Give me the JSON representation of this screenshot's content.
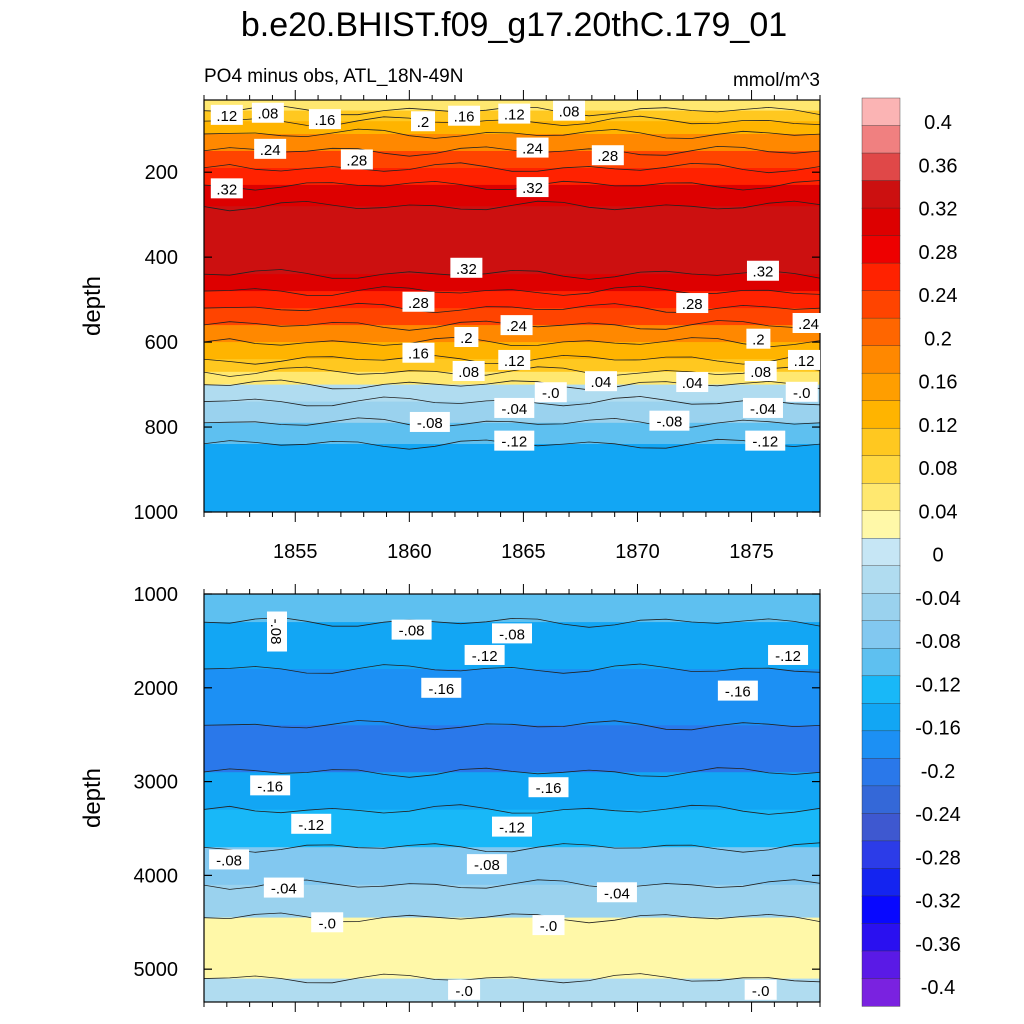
{
  "chart_data": {
    "type": "heatmap",
    "title": "b.e20.BHIST.f09_g17.20thC.179_01",
    "subtitle_left": "PO4 minus obs, ATL_18N-49N",
    "units": "mmol/m^3",
    "colorbar": {
      "label_values": [
        "0.4",
        "0.36",
        "0.32",
        "0.28",
        "0.24",
        "0.2",
        "0.16",
        "0.12",
        "0.08",
        "0.04",
        "0",
        "-0.04",
        "-0.08",
        "-0.12",
        "-0.16",
        "-0.2",
        "-0.24",
        "-0.28",
        "-0.32",
        "-0.36",
        "-0.4"
      ],
      "colors": [
        "#fbb4b4",
        "#f08080",
        "#e04848",
        "#cc1010",
        "#dd0000",
        "#ee0000",
        "#ff2200",
        "#ff4400",
        "#ff6600",
        "#ff8800",
        "#ff9e00",
        "#ffb400",
        "#ffc820",
        "#ffd840",
        "#ffe870",
        "#fff8a8",
        "#c6e6f5",
        "#b0dcf0",
        "#9ad2ee",
        "#82c8f0",
        "#5ec0f0",
        "#18b8f8",
        "#12a6f4",
        "#1c90f4",
        "#2a78ea",
        "#3468d8",
        "#3e58d0",
        "#2c3ce8",
        "#1424f0",
        "#0808ff",
        "#2a10f0",
        "#5a1ae6",
        "#7a22e0"
      ]
    },
    "panels": [
      {
        "name": "upper",
        "ylabel": "depth",
        "xlim": [
          1851,
          1878
        ],
        "ylim": [
          1000,
          30
        ],
        "yticks": [
          200,
          400,
          600,
          800,
          1000
        ],
        "xticks": [
          1855,
          1860,
          1865,
          1870,
          1875
        ],
        "xtick_labels": [
          "1855",
          "1860",
          "1865",
          "1870",
          "1875"
        ],
        "bands": [
          {
            "depth_top": 30,
            "depth_bottom": 55,
            "value": 0.06
          },
          {
            "depth_top": 55,
            "depth_bottom": 80,
            "value": 0.1
          },
          {
            "depth_top": 80,
            "depth_bottom": 110,
            "value": 0.14
          },
          {
            "depth_top": 110,
            "depth_bottom": 150,
            "value": 0.18
          },
          {
            "depth_top": 150,
            "depth_bottom": 190,
            "value": 0.22
          },
          {
            "depth_top": 190,
            "depth_bottom": 230,
            "value": 0.26
          },
          {
            "depth_top": 230,
            "depth_bottom": 280,
            "value": 0.3
          },
          {
            "depth_top": 280,
            "depth_bottom": 440,
            "value": 0.34
          },
          {
            "depth_top": 440,
            "depth_bottom": 480,
            "value": 0.3
          },
          {
            "depth_top": 480,
            "depth_bottom": 520,
            "value": 0.26
          },
          {
            "depth_top": 520,
            "depth_bottom": 560,
            "value": 0.22
          },
          {
            "depth_top": 560,
            "depth_bottom": 600,
            "value": 0.18
          },
          {
            "depth_top": 600,
            "depth_bottom": 640,
            "value": 0.14
          },
          {
            "depth_top": 640,
            "depth_bottom": 670,
            "value": 0.1
          },
          {
            "depth_top": 670,
            "depth_bottom": 700,
            "value": 0.04
          },
          {
            "depth_top": 700,
            "depth_bottom": 740,
            "value": -0.02
          },
          {
            "depth_top": 740,
            "depth_bottom": 790,
            "value": -0.06
          },
          {
            "depth_top": 790,
            "depth_bottom": 840,
            "value": -0.1
          },
          {
            "depth_top": 840,
            "depth_bottom": 1000,
            "value": -0.14
          }
        ],
        "labels": [
          {
            "text": ".12",
            "year": 1852.0,
            "depth": 65
          },
          {
            "text": ".08",
            "year": 1853.8,
            "depth": 60
          },
          {
            "text": ".16",
            "year": 1856.3,
            "depth": 75
          },
          {
            "text": ".2",
            "year": 1860.6,
            "depth": 80
          },
          {
            "text": ".16",
            "year": 1862.4,
            "depth": 67
          },
          {
            "text": ".12",
            "year": 1864.6,
            "depth": 62
          },
          {
            "text": ".08",
            "year": 1867.0,
            "depth": 55
          },
          {
            "text": ".24",
            "year": 1853.9,
            "depth": 145
          },
          {
            "text": ".28",
            "year": 1857.7,
            "depth": 170
          },
          {
            "text": ".24",
            "year": 1865.4,
            "depth": 142
          },
          {
            "text": ".28",
            "year": 1868.7,
            "depth": 160
          },
          {
            "text": ".32",
            "year": 1852.0,
            "depth": 238
          },
          {
            "text": ".32",
            "year": 1865.4,
            "depth": 235
          },
          {
            "text": ".32",
            "year": 1862.5,
            "depth": 425
          },
          {
            "text": ".32",
            "year": 1875.5,
            "depth": 432
          },
          {
            "text": ".28",
            "year": 1860.4,
            "depth": 505
          },
          {
            "text": ".28",
            "year": 1872.4,
            "depth": 508
          },
          {
            "text": ".24",
            "year": 1864.7,
            "depth": 560
          },
          {
            "text": ".24",
            "year": 1877.5,
            "depth": 555
          },
          {
            "text": ".2",
            "year": 1862.5,
            "depth": 588
          },
          {
            "text": ".2",
            "year": 1875.3,
            "depth": 592
          },
          {
            "text": ".16",
            "year": 1860.4,
            "depth": 625
          },
          {
            "text": ".12",
            "year": 1864.6,
            "depth": 642
          },
          {
            "text": ".12",
            "year": 1877.3,
            "depth": 642
          },
          {
            "text": ".08",
            "year": 1862.6,
            "depth": 668
          },
          {
            "text": ".08",
            "year": 1875.4,
            "depth": 668
          },
          {
            "text": ".04",
            "year": 1868.4,
            "depth": 692
          },
          {
            "text": ".04",
            "year": 1872.4,
            "depth": 694
          },
          {
            "text": "-.0",
            "year": 1866.2,
            "depth": 718
          },
          {
            "text": "-.0",
            "year": 1877.2,
            "depth": 717
          },
          {
            "text": "-.04",
            "year": 1864.6,
            "depth": 755
          },
          {
            "text": "-.04",
            "year": 1875.5,
            "depth": 755
          },
          {
            "text": "-.08",
            "year": 1860.9,
            "depth": 788
          },
          {
            "text": "-.08",
            "year": 1871.4,
            "depth": 785
          },
          {
            "text": "-.12",
            "year": 1864.6,
            "depth": 832
          },
          {
            "text": "-.12",
            "year": 1875.6,
            "depth": 832
          }
        ]
      },
      {
        "name": "lower",
        "ylabel": "depth",
        "xlim": [
          1851,
          1878
        ],
        "ylim": [
          5350,
          1000
        ],
        "yticks": [
          1000,
          2000,
          3000,
          4000,
          5000
        ],
        "xticks": [
          1855,
          1860,
          1865,
          1870,
          1875
        ],
        "bands": [
          {
            "depth_top": 1000,
            "depth_bottom": 1300,
            "value": -0.1
          },
          {
            "depth_top": 1300,
            "depth_bottom": 1800,
            "value": -0.14
          },
          {
            "depth_top": 1800,
            "depth_bottom": 2400,
            "value": -0.18
          },
          {
            "depth_top": 2400,
            "depth_bottom": 2900,
            "value": -0.2
          },
          {
            "depth_top": 2900,
            "depth_bottom": 3300,
            "value": -0.16
          },
          {
            "depth_top": 3300,
            "depth_bottom": 3700,
            "value": -0.12
          },
          {
            "depth_top": 3700,
            "depth_bottom": 4100,
            "value": -0.08
          },
          {
            "depth_top": 4100,
            "depth_bottom": 4450,
            "value": -0.04
          },
          {
            "depth_top": 4450,
            "depth_bottom": 5100,
            "value": 0.02
          },
          {
            "depth_top": 5100,
            "depth_bottom": 5350,
            "value": -0.02
          }
        ],
        "labels": [
          {
            "text": "-.08",
            "year": 1854.2,
            "depth": 1400,
            "rotated": true
          },
          {
            "text": "-.08",
            "year": 1860.1,
            "depth": 1380
          },
          {
            "text": "-.08",
            "year": 1864.5,
            "depth": 1420
          },
          {
            "text": "-.12",
            "year": 1863.3,
            "depth": 1650
          },
          {
            "text": "-.12",
            "year": 1876.6,
            "depth": 1650
          },
          {
            "text": "-.16",
            "year": 1861.4,
            "depth": 2000
          },
          {
            "text": "-.16",
            "year": 1874.4,
            "depth": 2030
          },
          {
            "text": "-.16",
            "year": 1853.9,
            "depth": 3040
          },
          {
            "text": "-.16",
            "year": 1866.1,
            "depth": 3060
          },
          {
            "text": "-.12",
            "year": 1855.7,
            "depth": 3450
          },
          {
            "text": "-.12",
            "year": 1864.5,
            "depth": 3480
          },
          {
            "text": "-.08",
            "year": 1852.1,
            "depth": 3830
          },
          {
            "text": "-.08",
            "year": 1863.4,
            "depth": 3880
          },
          {
            "text": "-.04",
            "year": 1854.5,
            "depth": 4130
          },
          {
            "text": "-.04",
            "year": 1869.1,
            "depth": 4180
          },
          {
            "text": "-.0",
            "year": 1856.4,
            "depth": 4500
          },
          {
            "text": "-.0",
            "year": 1866.1,
            "depth": 4530
          },
          {
            "text": "-.0",
            "year": 1862.4,
            "depth": 5220
          },
          {
            "text": "-.0",
            "year": 1875.4,
            "depth": 5220
          }
        ]
      }
    ]
  }
}
